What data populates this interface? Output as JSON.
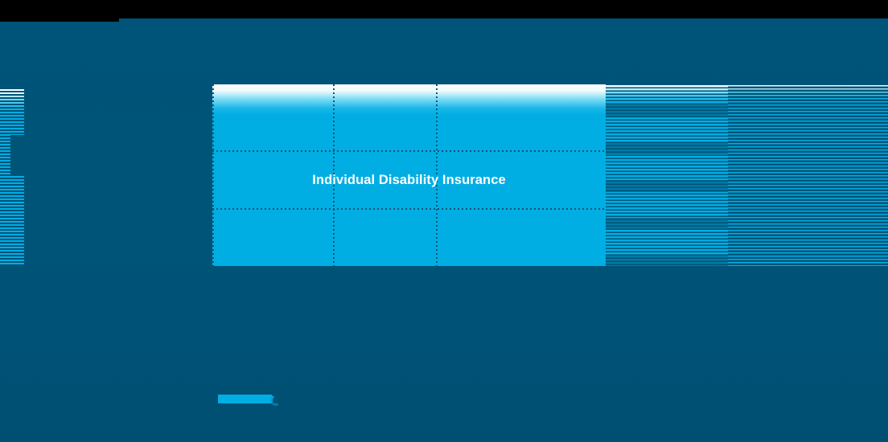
{
  "slide": {
    "title": "Individual Disability Insurance"
  },
  "colors": {
    "background": "#005478",
    "accent_cyan": "#00aee4",
    "grid_dot": "#14536f",
    "letterbox_black": "#000000",
    "title_text": "#ffffff"
  }
}
